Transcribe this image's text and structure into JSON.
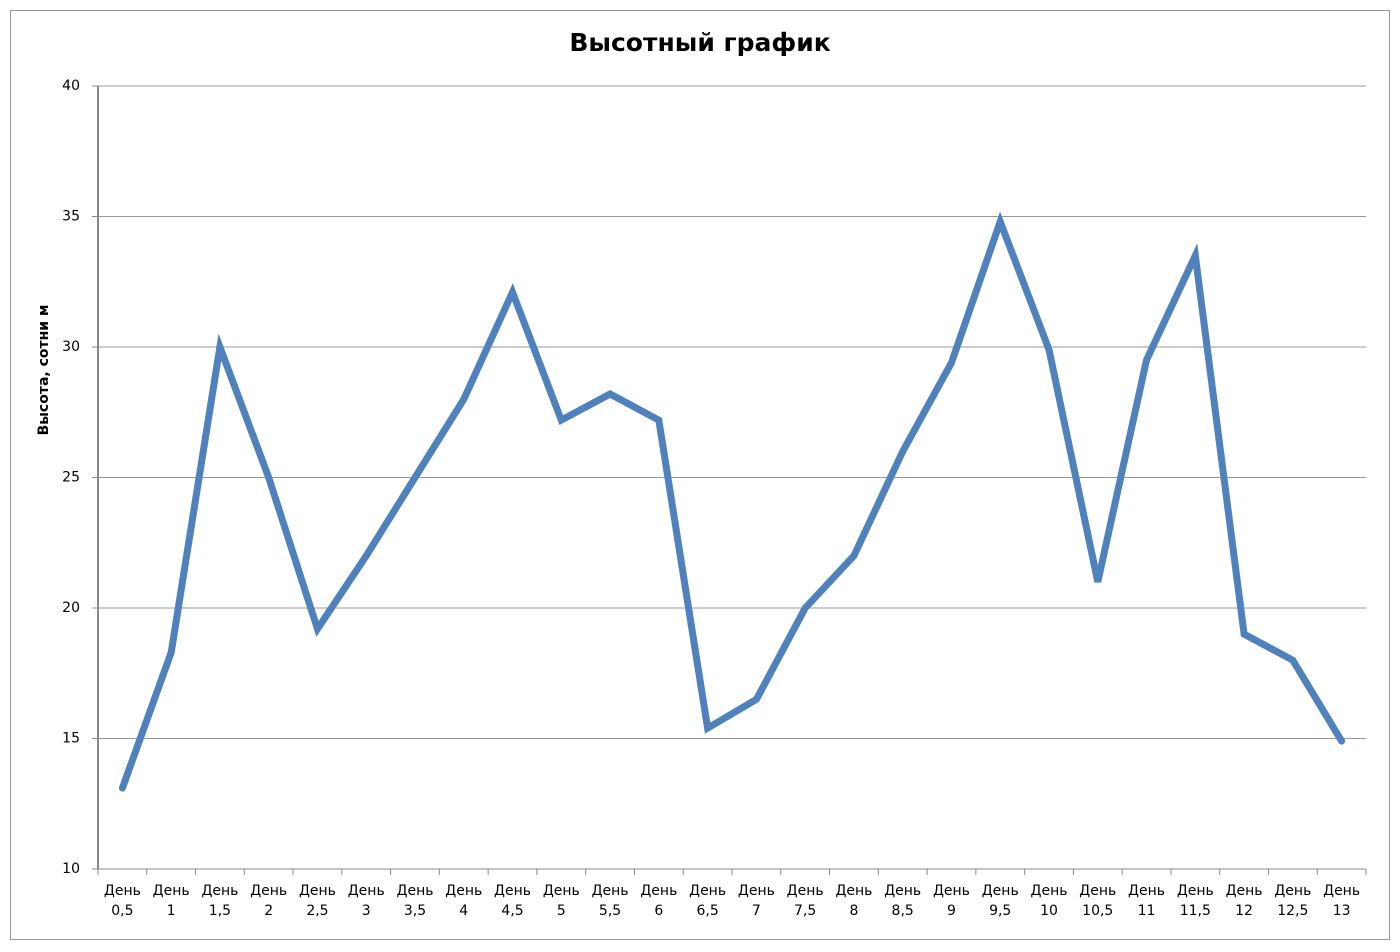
{
  "chart_data": {
    "type": "line",
    "title": "Высотный график",
    "y_label": "Высота, сотни м",
    "categories": [
      "День 0,5",
      "День 1",
      "День 1,5",
      "День 2",
      "День 2,5",
      "День 3",
      "День 3,5",
      "День 4",
      "День 4,5",
      "День 5",
      "День 5,5",
      "День 6",
      "День 6,5",
      "День 7",
      "День 7,5",
      "День 8",
      "День 8,5",
      "День 9",
      "День 9,5",
      "День 10",
      "День 10,5",
      "День 11",
      "День 11,5",
      "День 12",
      "День 12,5",
      "День 13"
    ],
    "values": [
      13.1,
      18.3,
      30,
      25,
      19.2,
      22,
      25,
      28,
      32.1,
      27.2,
      28.2,
      27.2,
      15.4,
      16.5,
      20,
      22,
      26,
      29.4,
      34.8,
      29.9,
      21,
      29.5,
      33.5,
      19,
      18,
      14.9
    ],
    "color": "#4f81bd",
    "ylim": [
      10,
      40
    ],
    "yticks": [
      10,
      15,
      20,
      25,
      30,
      35,
      40
    ],
    "grid": true
  }
}
